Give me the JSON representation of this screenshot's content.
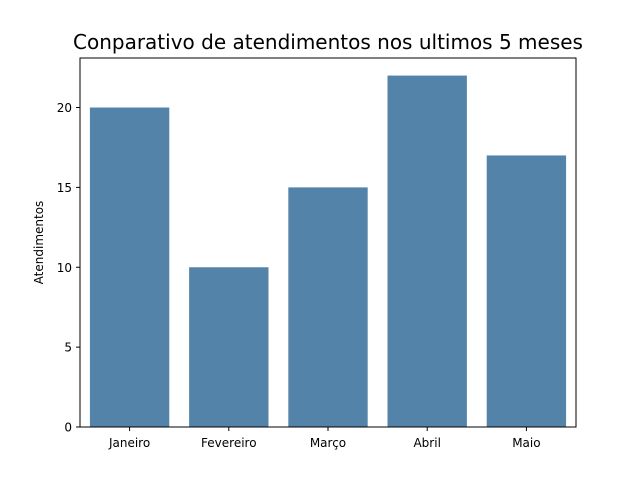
{
  "chart_data": {
    "type": "bar",
    "title": "Conparativo de atendimentos nos ultimos 5 meses",
    "xlabel": "",
    "ylabel": "Atendimentos",
    "categories": [
      "Janeiro",
      "Fevereiro",
      "Março",
      "Abril",
      "Maio"
    ],
    "values": [
      20,
      10,
      15,
      22,
      17
    ],
    "ylim": [
      0,
      23.1
    ],
    "yticks": [
      0,
      5,
      10,
      15,
      20
    ],
    "bar_color": "#5383a8",
    "grid": false,
    "legend": "none"
  }
}
